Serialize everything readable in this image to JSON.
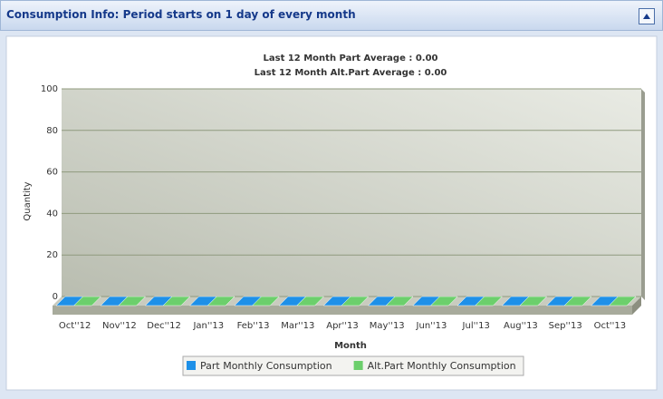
{
  "panel": {
    "title": "Consumption Info: Period starts on 1 day of every month"
  },
  "chart_data": {
    "type": "bar",
    "subtitles": [
      "Last 12 Month Part Average : 0.00",
      "Last 12 Month Alt.Part Average : 0.00"
    ],
    "categories": [
      "Oct''12",
      "Nov''12",
      "Dec''12",
      "Jan''13",
      "Feb''13",
      "Mar''13",
      "Apr''13",
      "May''13",
      "Jun''13",
      "Jul''13",
      "Aug''13",
      "Sep''13",
      "Oct''13"
    ],
    "series": [
      {
        "name": "Part Monthly Consumption",
        "color": "#1e90e8",
        "values": [
          0,
          0,
          0,
          0,
          0,
          0,
          0,
          0,
          0,
          0,
          0,
          0,
          0
        ]
      },
      {
        "name": "Alt.Part Monthly Consumption",
        "color": "#6ccf6c",
        "values": [
          0,
          0,
          0,
          0,
          0,
          0,
          0,
          0,
          0,
          0,
          0,
          0,
          0
        ]
      }
    ],
    "xlabel": "Month",
    "ylabel": "Quantity",
    "ylim": [
      0,
      100
    ],
    "yticks": [
      0,
      20,
      40,
      60,
      80,
      100
    ],
    "grid": true,
    "legend": "bottom"
  }
}
